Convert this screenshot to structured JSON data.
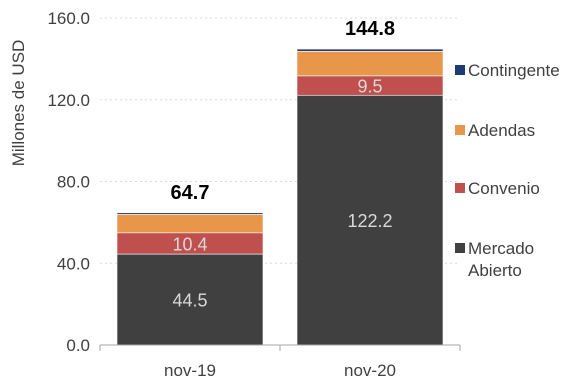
{
  "chart_data": {
    "type": "bar",
    "stacked": true,
    "categories": [
      "nov-19",
      "nov-20"
    ],
    "series": [
      {
        "name": "Mercado Abierto",
        "values": [
          44.5,
          122.2
        ],
        "color": "#404040",
        "label_values": [
          "44.5",
          "122.2"
        ]
      },
      {
        "name": "Convenio",
        "values": [
          10.4,
          9.5
        ],
        "color": "#c0504d",
        "label_values": [
          "10.4",
          "9.5"
        ]
      },
      {
        "name": "Adendas",
        "values": [
          9.0,
          12.0
        ],
        "color": "#e8964a",
        "label_values": []
      },
      {
        "name": "Contingente",
        "values": [
          0.8,
          1.1
        ],
        "color": "#1f3a75",
        "label_values": []
      }
    ],
    "totals": [
      "64.7",
      "144.8"
    ],
    "ylabel": "Millones de USD",
    "ylim": [
      0,
      160
    ],
    "yticks": [
      "0.0",
      "40.0",
      "80.0",
      "120.0",
      "160.0"
    ],
    "ytick_values": [
      0,
      40,
      80,
      120,
      160
    ],
    "grid": "horizontal-dotted",
    "legend_position": "right",
    "legend_order": [
      "Contingente",
      "Adendas",
      "Convenio",
      "Mercado Abierto"
    ],
    "legend_lines": {
      "Contingente": [
        "Contingente"
      ],
      "Adendas": [
        "Adendas"
      ],
      "Convenio": [
        "Convenio"
      ],
      "Mercado Abierto": [
        "Mercado",
        "Abierto"
      ]
    }
  }
}
